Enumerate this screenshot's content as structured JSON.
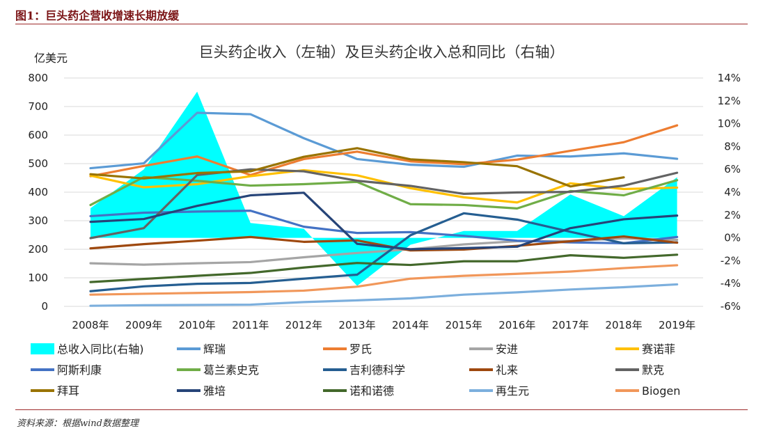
{
  "figure": {
    "title": "图1：巨头药企营收增速长期放缓",
    "source": "资料来源：根据wind数据整理"
  },
  "chart_data": {
    "type": "line",
    "title": "巨头药企收入（左轴）及巨头药企收入总和同比（右轴）",
    "y_left_unit": "亿美元",
    "y_left_range": [
      0,
      800
    ],
    "y_left_ticks": [
      "0",
      "100",
      "200",
      "300",
      "400",
      "500",
      "600",
      "700",
      "800"
    ],
    "y_right_range": [
      -0.06,
      0.14
    ],
    "y_right_ticks": [
      "-6%",
      "-4%",
      "-2%",
      "0%",
      "2%",
      "4%",
      "6%",
      "8%",
      "10%",
      "12%",
      "14%"
    ],
    "x": [
      "2008年",
      "2009年",
      "2010年",
      "2011年",
      "2012年",
      "2013年",
      "2014年",
      "2015年",
      "2016年",
      "2017年",
      "2018年",
      "2019年"
    ],
    "grid": "horizontal",
    "legend_position": "bottom",
    "area_series": {
      "name": "总收入同比(右轴)",
      "color": "#00ffff",
      "values": [
        0.026,
        0.06,
        0.128,
        0.013,
        0.008,
        -0.042,
        -0.006,
        0.006,
        0.006,
        0.038,
        0.019,
        0.053
      ]
    },
    "series": [
      {
        "name": "辉瑞",
        "color": "#5b9bd5",
        "values": [
          484,
          501,
          678,
          673,
          589,
          516,
          496,
          489,
          528,
          525,
          536,
          517
        ]
      },
      {
        "name": "罗氏",
        "color": "#ed7d31",
        "values": [
          456,
          492,
          525,
          460,
          516,
          542,
          508,
          498,
          514,
          545,
          575,
          634
        ]
      },
      {
        "name": "安进",
        "color": "#a5a5a5",
        "values": [
          151,
          146,
          151,
          155,
          172,
          187,
          200,
          217,
          228,
          229,
          238,
          233
        ]
      },
      {
        "name": "赛诺菲",
        "color": "#ffc000",
        "values": [
          458,
          417,
          428,
          456,
          477,
          459,
          414,
          382,
          364,
          431,
          411,
          416
        ]
      },
      {
        "name": "阿斯利康",
        "color": "#4472c4",
        "values": [
          316,
          328,
          332,
          335,
          279,
          257,
          260,
          247,
          230,
          224,
          221,
          243
        ]
      },
      {
        "name": "葛兰素史克",
        "color": "#70ad47",
        "values": [
          355,
          453,
          440,
          423,
          428,
          436,
          358,
          355,
          343,
          404,
          389,
          442
        ]
      },
      {
        "name": "吉利德科学",
        "color": "#255e91",
        "values": [
          53,
          70,
          79,
          82,
          97,
          111,
          249,
          326,
          304,
          261,
          221,
          224
        ]
      },
      {
        "name": "礼来",
        "color": "#9e480e",
        "values": [
          203,
          218,
          230,
          243,
          226,
          231,
          196,
          199,
          212,
          228,
          245,
          223
        ]
      },
      {
        "name": "默克",
        "color": "#636363",
        "values": [
          239,
          274,
          460,
          480,
          473,
          440,
          422,
          394,
          399,
          401,
          423,
          468
        ]
      },
      {
        "name": "拜耳",
        "color": "#997300",
        "values": [
          463,
          448,
          467,
          473,
          524,
          554,
          515,
          505,
          491,
          420,
          452,
          null
        ]
      },
      {
        "name": "雅培",
        "color": "#264478",
        "values": [
          296,
          306,
          352,
          389,
          398,
          219,
          200,
          204,
          209,
          274,
          305,
          318
        ]
      },
      {
        "name": "诺和诺德",
        "color": "#43682b",
        "values": [
          85,
          96,
          107,
          117,
          136,
          152,
          145,
          158,
          158,
          179,
          170,
          181
        ]
      },
      {
        "name": "再生元",
        "color": "#7cafdd",
        "values": [
          2,
          4,
          5,
          6,
          15,
          21,
          28,
          41,
          49,
          59,
          67,
          77
        ]
      },
      {
        "name": "Biogen",
        "color": "#f1975a",
        "values": [
          41,
          44,
          47,
          50,
          55,
          69,
          97,
          107,
          114,
          122,
          134,
          144
        ]
      }
    ]
  }
}
